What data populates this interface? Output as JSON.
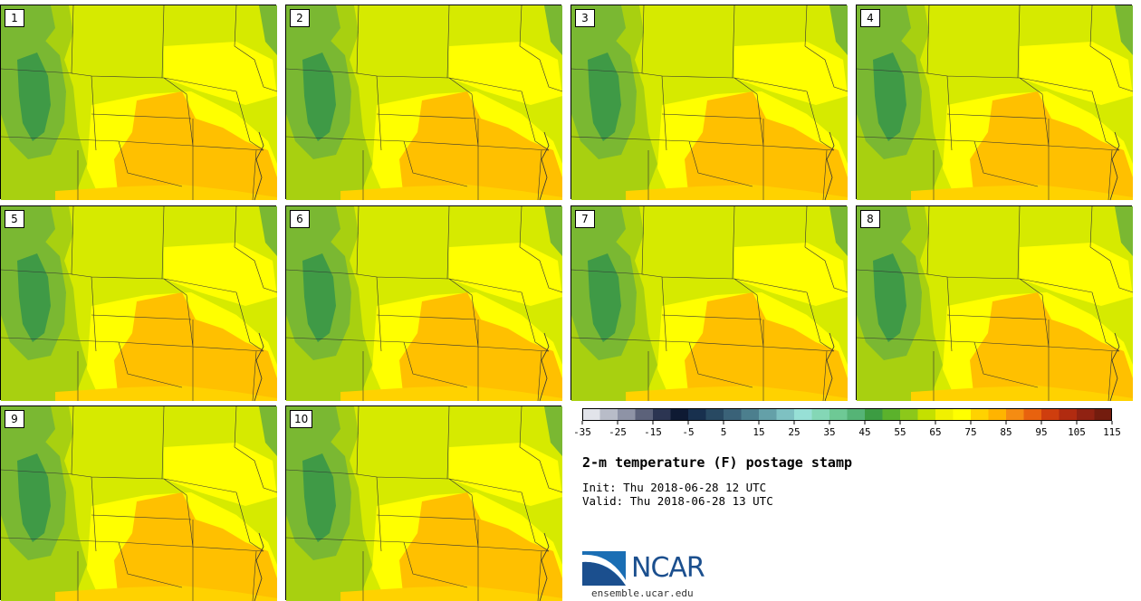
{
  "figure": {
    "title": "2-m temperature (F) postage stamp",
    "init": "Thu 2018-06-28 12 UTC",
    "valid": "Thu 2018-06-28 13 UTC",
    "init_label": "Init:",
    "valid_label": "Valid:",
    "logo_text": "NCAR",
    "logo_url": "ensemble.ucar.edu"
  },
  "members": [
    "1",
    "2",
    "3",
    "4",
    "5",
    "6",
    "7",
    "8",
    "9",
    "10"
  ],
  "colorbar": {
    "levels_start": -35,
    "level_step": 5,
    "tick_labels": [
      "-35",
      "-25",
      "-15",
      "-5",
      "5",
      "15",
      "25",
      "35",
      "45",
      "55",
      "65",
      "75",
      "85",
      "95",
      "105",
      "115"
    ],
    "colors": [
      "#e2e4ea",
      "#b8bcc8",
      "#8e93a6",
      "#5c627a",
      "#2c3552",
      "#0e1a33",
      "#18304e",
      "#284962",
      "#3a6278",
      "#4c7f8e",
      "#64a0a8",
      "#7ec1c2",
      "#97e0d6",
      "#84d7b6",
      "#6ec995",
      "#55b476",
      "#3c9c42",
      "#5bb22c",
      "#8cc81a",
      "#c4e000",
      "#f0f000",
      "#ffff00",
      "#ffd200",
      "#ffb400",
      "#f58c12",
      "#e8620e",
      "#cf3e0e",
      "#b12b10",
      "#902212",
      "#731c0e"
    ]
  },
  "map_colors": {
    "cold_green": "#3f9a46",
    "mid_green": "#7ab832",
    "light_green": "#a8d010",
    "yellow_green": "#d6ea00",
    "yellow": "#ffff00",
    "gold": "#ffd200",
    "orange": "#ffc000"
  }
}
